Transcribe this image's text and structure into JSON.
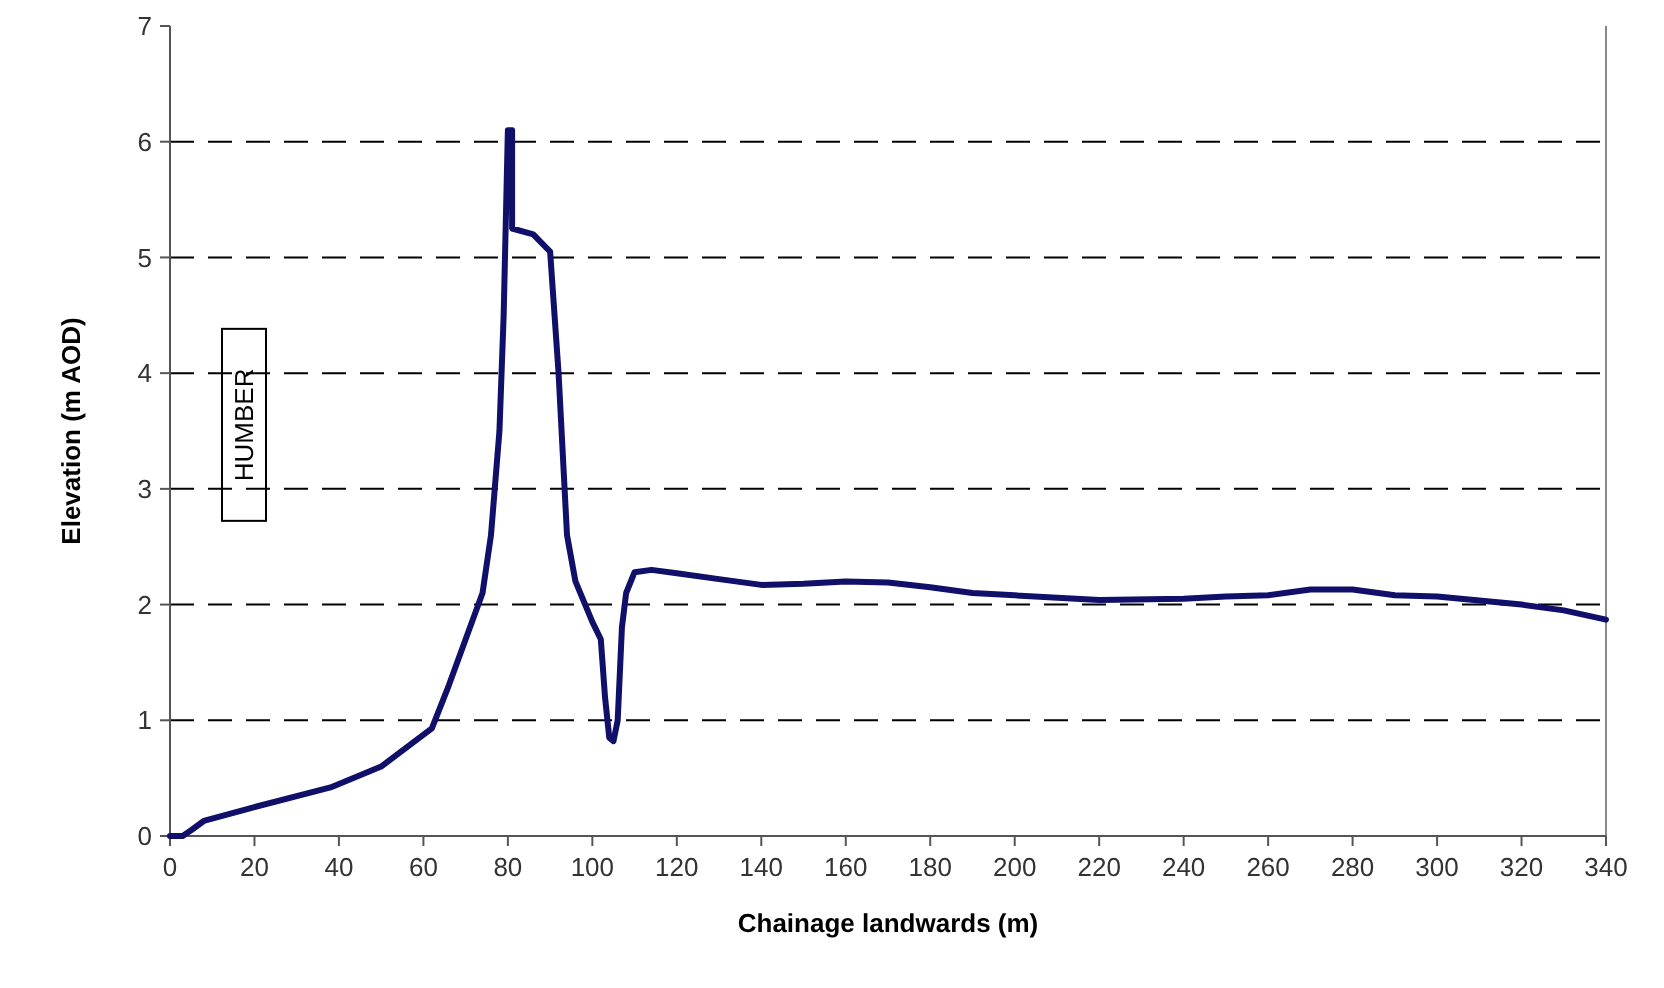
{
  "chart_data": {
    "type": "line",
    "xlabel": "Chainage landwards (m)",
    "ylabel": "Elevation (m AOD)",
    "annotations": [
      {
        "text": "HUMBER"
      }
    ],
    "xlim": [
      0,
      340
    ],
    "xticks": [
      0,
      20,
      40,
      60,
      80,
      100,
      120,
      140,
      160,
      180,
      200,
      220,
      240,
      260,
      280,
      300,
      320,
      340
    ],
    "ylim": [
      0,
      7
    ],
    "yticks": [
      0,
      1,
      2,
      3,
      4,
      5,
      6,
      7
    ],
    "grid": "y",
    "marker": "none",
    "line_style": "solid",
    "series": [
      {
        "color": "#10106a",
        "x": [
          0,
          3,
          5,
          8,
          20,
          38,
          50,
          62,
          66,
          70,
          74,
          76,
          78,
          79,
          80,
          81,
          81,
          86,
          90,
          92,
          94,
          96,
          100,
          102,
          103,
          104,
          105,
          106,
          107,
          108,
          110,
          114,
          120,
          130,
          140,
          150,
          160,
          170,
          180,
          190,
          200,
          220,
          240,
          250,
          260,
          270,
          280,
          290,
          300,
          320,
          330,
          340
        ],
        "values": [
          0,
          0,
          0.05,
          0.13,
          0.25,
          0.42,
          0.6,
          0.93,
          1.3,
          1.7,
          2.1,
          2.6,
          3.5,
          4.5,
          6.1,
          6.1,
          5.25,
          5.2,
          5.05,
          4,
          2.6,
          2.2,
          1.85,
          1.7,
          1.2,
          0.85,
          0.82,
          1.0,
          1.8,
          2.1,
          2.28,
          2.3,
          2.27,
          2.22,
          2.17,
          2.18,
          2.2,
          2.19,
          2.15,
          2.1,
          2.08,
          2.04,
          2.05,
          2.07,
          2.08,
          2.13,
          2.13,
          2.08,
          2.07,
          2.0,
          1.95,
          1.87
        ]
      }
    ]
  }
}
